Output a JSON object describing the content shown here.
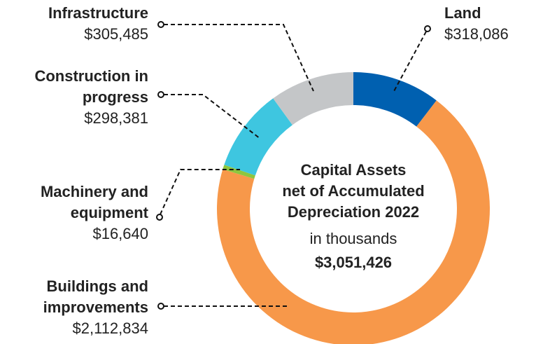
{
  "chart_data": {
    "type": "donut",
    "center_title": [
      "Capital Assets",
      "net of Accumulated",
      "Depreciation 2022"
    ],
    "center_subtitle": "in thousands",
    "center_total_label": "$3,051,426",
    "categories": [
      [
        "Land"
      ],
      [
        "Buildings and",
        "improvements"
      ],
      [
        "Machinery and",
        "equipment"
      ],
      [
        "Construction in",
        "progress"
      ],
      [
        "Infrastructure"
      ]
    ],
    "values": [
      318086,
      2112834,
      16640,
      298381,
      305485
    ],
    "value_labels": [
      "$318,086",
      "$2,112,834",
      "$16,640",
      "$298,381",
      "$305,485"
    ],
    "colors": [
      "#0060b0",
      "#f7984a",
      "#8dc63f",
      "#3ec6e0",
      "#c4c6c8"
    ]
  }
}
